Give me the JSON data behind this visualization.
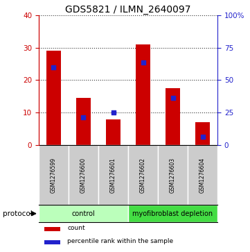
{
  "title": "GDS5821 / ILMN_2640097",
  "samples": [
    "GSM1276599",
    "GSM1276600",
    "GSM1276601",
    "GSM1276602",
    "GSM1276603",
    "GSM1276604"
  ],
  "counts": [
    29,
    14.5,
    8,
    31,
    17.5,
    7
  ],
  "percentile_left_axis": [
    24,
    8.5,
    10,
    25.5,
    14.5,
    2.5
  ],
  "left_ylim": [
    0,
    40
  ],
  "right_ylim": [
    0,
    100
  ],
  "left_yticks": [
    0,
    10,
    20,
    30,
    40
  ],
  "right_yticks": [
    0,
    25,
    50,
    75,
    100
  ],
  "right_yticklabels": [
    "0",
    "25",
    "50",
    "75",
    "100%"
  ],
  "bar_color": "#cc0000",
  "marker_color": "#2222cc",
  "groups": [
    {
      "label": "control",
      "start": 0,
      "end": 3,
      "color": "#bbffbb"
    },
    {
      "label": "myofibroblast depletion",
      "start": 3,
      "end": 6,
      "color": "#44dd44"
    }
  ],
  "legend_items": [
    {
      "label": "count",
      "color": "#cc0000"
    },
    {
      "label": "percentile rank within the sample",
      "color": "#2222cc"
    }
  ],
  "protocol_label": "protocol",
  "bg_color_sample": "#cccccc",
  "bar_width": 0.5,
  "title_fontsize": 10,
  "tick_fontsize": 7.5,
  "sample_fontsize": 5.5,
  "group_fontsize": 7,
  "legend_fontsize": 6.5,
  "protocol_fontsize": 7.5
}
